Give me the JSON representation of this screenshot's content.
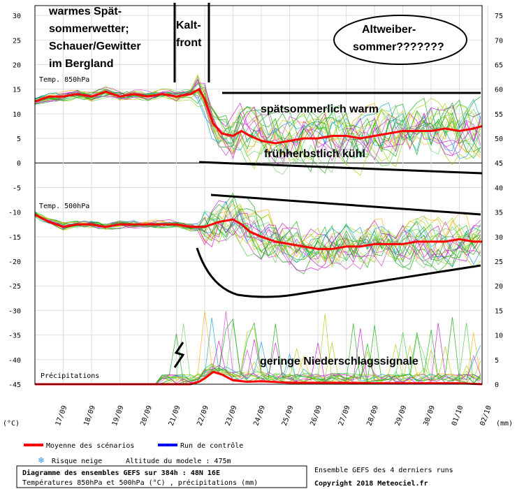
{
  "chart_data": {
    "type": "line",
    "title": "Diagramme des ensembles GEFS sur 384h : 48N 16E",
    "subtitle": "Températures 850hPa et 500hPa (°C) , précipitations (mm)",
    "unit_left": "(°C)",
    "unit_right": "(mm)",
    "left_ticks": [
      30,
      25,
      20,
      15,
      10,
      5,
      0,
      -5,
      -10,
      -15,
      -20,
      -25,
      -30,
      -35,
      -40,
      -45
    ],
    "right_ticks": [
      75,
      70,
      65,
      60,
      55,
      50,
      45,
      40,
      35,
      30,
      25,
      20,
      15,
      10,
      5,
      0
    ],
    "y_left_range": [
      -45,
      32
    ],
    "x_dates": [
      "17/09",
      "18/09",
      "19/09",
      "20/09",
      "21/09",
      "22/09",
      "23/09",
      "24/09",
      "25/09",
      "26/09",
      "27/09",
      "28/09",
      "29/09",
      "30/09",
      "01/10",
      "02/10"
    ],
    "panel_labels": {
      "t850": "Temp. 850hPa",
      "t500": "Temp. 500hPa",
      "precip": "Précipitations"
    },
    "series": [
      {
        "name": "Moyenne des scénarios",
        "color": "#ff0000",
        "t850": [
          [
            16.0,
            12.5
          ],
          [
            16.5,
            13.5
          ],
          [
            17.0,
            13.5
          ],
          [
            17.5,
            14.0
          ],
          [
            18.0,
            13.5
          ],
          [
            18.5,
            14.5
          ],
          [
            19.0,
            13.5
          ],
          [
            19.5,
            14.0
          ],
          [
            20.0,
            13.5
          ],
          [
            20.5,
            14.0
          ],
          [
            21.0,
            13.5
          ],
          [
            21.5,
            14.0
          ],
          [
            21.8,
            15.0
          ],
          [
            22.0,
            13.0
          ],
          [
            22.3,
            8.0
          ],
          [
            22.6,
            6.0
          ],
          [
            23.0,
            5.5
          ],
          [
            23.3,
            6.5
          ],
          [
            23.6,
            5.5
          ],
          [
            24.0,
            4.5
          ],
          [
            24.5,
            4.0
          ],
          [
            25.0,
            4.5
          ],
          [
            25.5,
            5.0
          ],
          [
            26.0,
            5.0
          ],
          [
            26.5,
            5.5
          ],
          [
            27.0,
            5.5
          ],
          [
            27.5,
            5.0
          ],
          [
            28.0,
            5.5
          ],
          [
            28.5,
            6.0
          ],
          [
            29.0,
            6.5
          ],
          [
            29.5,
            6.5
          ],
          [
            30.0,
            6.5
          ],
          [
            30.5,
            7.0
          ],
          [
            31.0,
            6.5
          ],
          [
            31.5,
            7.0
          ],
          [
            31.8,
            7.5
          ]
        ],
        "t500": [
          [
            16.0,
            -10.5
          ],
          [
            16.5,
            -12.0
          ],
          [
            17.0,
            -13.0
          ],
          [
            17.5,
            -12.5
          ],
          [
            18.0,
            -12.5
          ],
          [
            18.5,
            -13.0
          ],
          [
            19.0,
            -12.5
          ],
          [
            19.5,
            -12.5
          ],
          [
            20.0,
            -12.5
          ],
          [
            20.5,
            -12.5
          ],
          [
            21.0,
            -12.5
          ],
          [
            21.5,
            -13.0
          ],
          [
            22.0,
            -13.0
          ],
          [
            22.5,
            -12.0
          ],
          [
            23.0,
            -11.5
          ],
          [
            23.3,
            -12.5
          ],
          [
            23.6,
            -14.0
          ],
          [
            24.0,
            -15.0
          ],
          [
            24.5,
            -16.0
          ],
          [
            25.0,
            -16.5
          ],
          [
            25.5,
            -17.0
          ],
          [
            26.0,
            -17.5
          ],
          [
            26.5,
            -17.5
          ],
          [
            27.0,
            -17.0
          ],
          [
            27.5,
            -17.0
          ],
          [
            28.0,
            -16.5
          ],
          [
            28.5,
            -16.5
          ],
          [
            29.0,
            -16.5
          ],
          [
            29.5,
            -16.0
          ],
          [
            30.0,
            -16.0
          ],
          [
            30.5,
            -16.0
          ],
          [
            31.0,
            -15.5
          ],
          [
            31.5,
            -16.0
          ],
          [
            31.8,
            -16.0
          ]
        ],
        "precip": [
          [
            16.0,
            0.0
          ],
          [
            21.5,
            0.0
          ],
          [
            21.8,
            0.5
          ],
          [
            22.0,
            1.2
          ],
          [
            22.3,
            2.5
          ],
          [
            22.6,
            2.0
          ],
          [
            23.0,
            0.8
          ],
          [
            23.5,
            0.5
          ],
          [
            24.0,
            0.6
          ],
          [
            25.0,
            0.3
          ],
          [
            26.0,
            0.3
          ],
          [
            27.0,
            0.3
          ],
          [
            28.0,
            0.2
          ],
          [
            29.0,
            0.2
          ],
          [
            30.0,
            0.2
          ],
          [
            31.0,
            0.2
          ],
          [
            31.8,
            0.0
          ]
        ]
      },
      {
        "name": "Run de contrôle",
        "color": "#0000ff"
      }
    ],
    "legend": {
      "position": "bottom-left",
      "mean_label": "Moyenne des scénarios",
      "control_label": "Run de contrôle",
      "snow_label": "Risque neige",
      "altitude_label": "Altitude du modele : 475m"
    },
    "footer": {
      "runs_label": "Ensemble GEFS des 4 derniers runs",
      "copyright": "Copyright 2018 Meteociel.fr"
    },
    "annotations": {
      "warm_1": "warmes Spät-",
      "warm_2": "sommerwetter;",
      "warm_3": "Schauer/Gewitter",
      "warm_4": "im Bergland",
      "front_1": "Kalt-",
      "front_2": "front",
      "ellipse_1": "Altweiber-",
      "ellipse_2": "sommer???????",
      "warm_band": "spätsommerlich warm",
      "cool_band": "frühherbstlich kühl",
      "precip_note": "geringe Niederschlagssignale"
    },
    "grid": true
  }
}
